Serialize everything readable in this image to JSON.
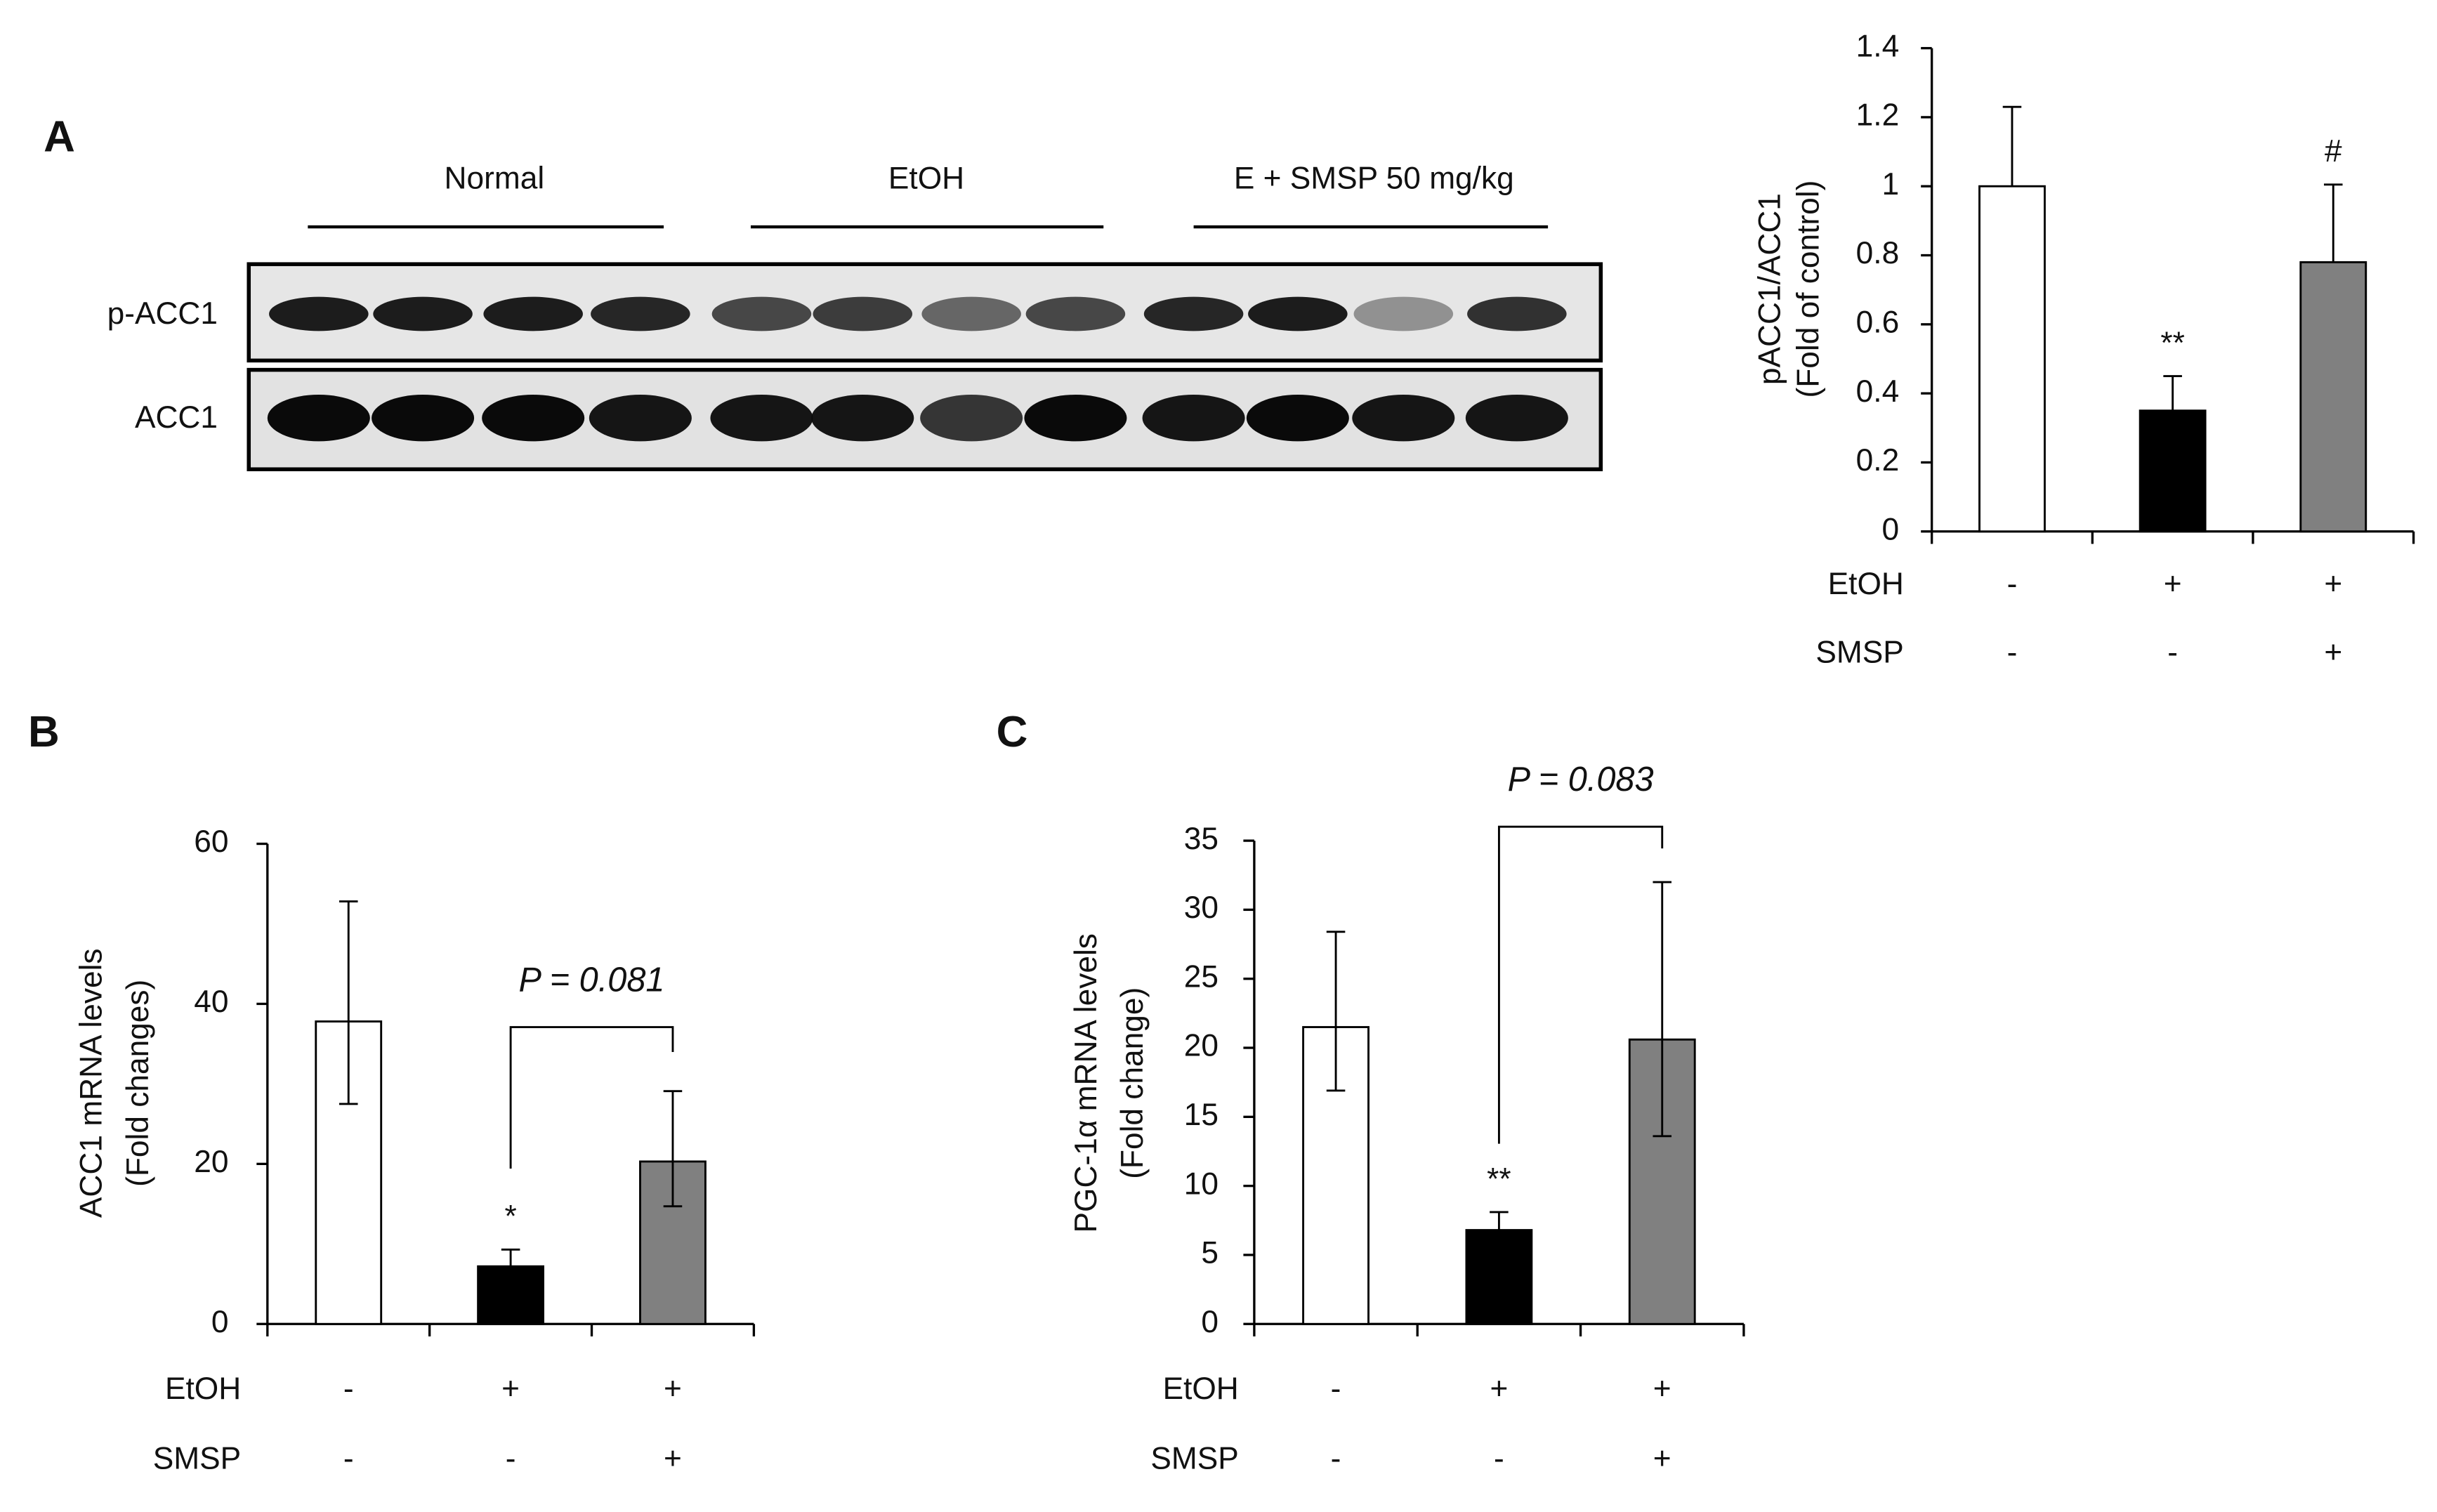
{
  "panels": [
    "A",
    "B",
    "C"
  ],
  "blot": {
    "groups": [
      "Normal",
      "EtOH",
      "E + SMSP 50 mg/kg"
    ],
    "rows": [
      "p-ACC1",
      "ACC1"
    ]
  },
  "chart_data": [
    {
      "type": "bar",
      "ylabel": [
        "pACC1/ACC1",
        "(Fold of control)"
      ],
      "values": [
        1.0,
        0.35,
        0.78
      ],
      "errors": [
        0.23,
        0.1,
        0.225
      ],
      "colors": [
        "#ffffff",
        "#000000",
        "#808080"
      ],
      "significance": [
        null,
        "**",
        "#"
      ],
      "ylim": [
        0,
        1.4
      ],
      "yticks": [
        0,
        0.2,
        0.4,
        0.6,
        0.8,
        1,
        1.2,
        1.4
      ],
      "treatments": [
        {
          "name": "EtOH",
          "signs": [
            "-",
            "+",
            "+"
          ]
        },
        {
          "name": "SMSP",
          "signs": [
            "-",
            "-",
            "+"
          ]
        }
      ]
    },
    {
      "type": "bar",
      "ylabel": [
        "ACC1 mRNA levels",
        "(Fold changes)"
      ],
      "values": [
        37.8,
        7.2,
        20.3
      ],
      "errors": [
        [
          10.3,
          15
        ],
        [
          2.1,
          2.1
        ],
        [
          5.6,
          8.8
        ]
      ],
      "colors": [
        "#ffffff",
        "#000000",
        "#808080"
      ],
      "significance": [
        null,
        "*",
        null
      ],
      "p_label": "P = 0.081",
      "ylim": [
        0,
        60
      ],
      "yticks": [
        0,
        20,
        40,
        60
      ],
      "treatments": [
        {
          "name": "EtOH",
          "signs": [
            "-",
            "+",
            "+"
          ]
        },
        {
          "name": "SMSP",
          "signs": [
            "-",
            "-",
            "+"
          ]
        }
      ]
    },
    {
      "type": "bar",
      "ylabel": [
        "PGC-1α mRNA levels",
        "(Fold change)"
      ],
      "values": [
        21.5,
        6.8,
        20.6
      ],
      "errors": [
        [
          4.6,
          6.9
        ],
        [
          1.3,
          1.3
        ],
        [
          7,
          11.4
        ]
      ],
      "colors": [
        "#ffffff",
        "#000000",
        "#808080"
      ],
      "significance": [
        null,
        "**",
        null
      ],
      "p_label": "P = 0.083",
      "ylim": [
        0,
        35
      ],
      "yticks": [
        0,
        5,
        10,
        15,
        20,
        25,
        30,
        35
      ],
      "treatments": [
        {
          "name": "EtOH",
          "signs": [
            "-",
            "+",
            "+"
          ]
        },
        {
          "name": "SMSP",
          "signs": [
            "-",
            "-",
            "+"
          ]
        }
      ]
    }
  ]
}
